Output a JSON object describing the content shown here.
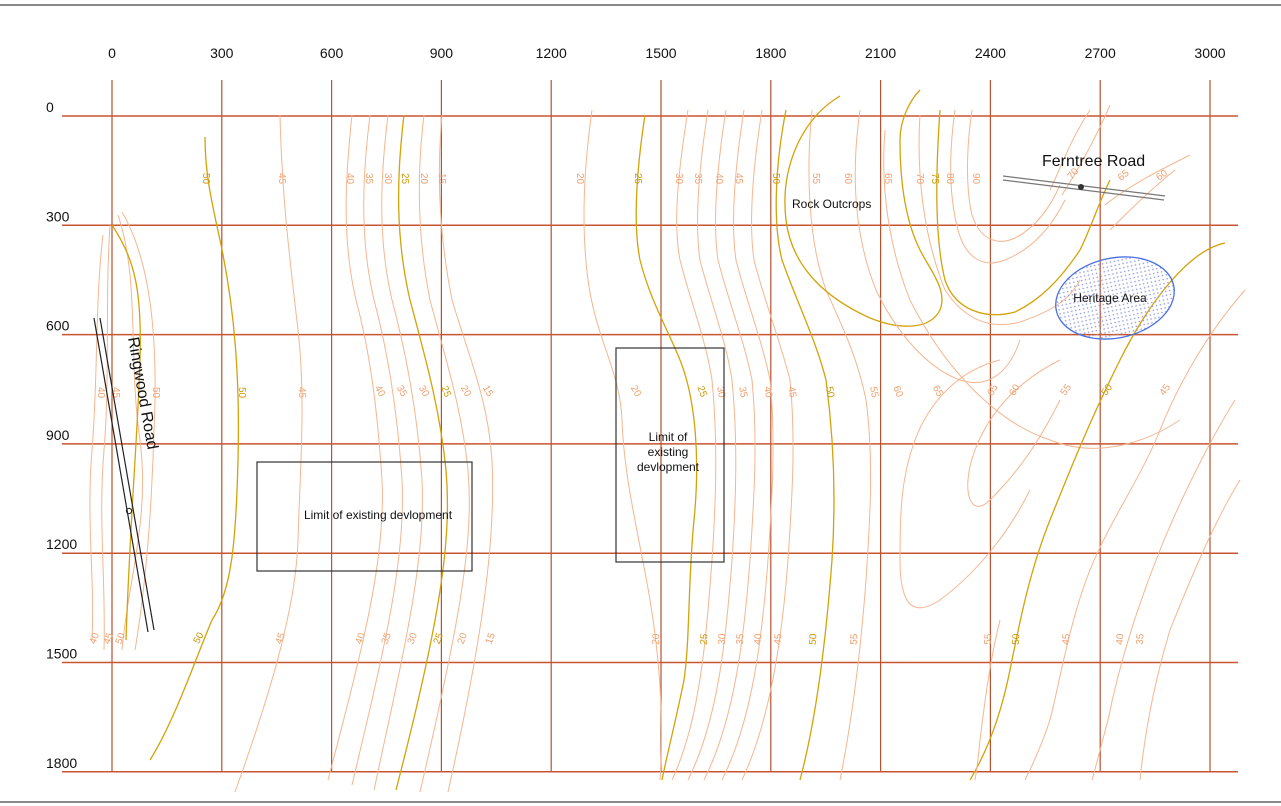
{
  "map": {
    "x_ticks": [
      "0",
      "300",
      "600",
      "900",
      "1200",
      "1500",
      "1800",
      "2100",
      "2400",
      "2700",
      "3000"
    ],
    "y_ticks": [
      "0",
      "300",
      "600",
      "900",
      "1200",
      "1500",
      "1800"
    ],
    "labels": {
      "ringwood_road": "Ringwood Road",
      "ferntree_road": "Ferntree Road",
      "rock_outcrops": "Rock Outcrops",
      "heritage_area": "Heritage Area",
      "limit_left": "Limit of existing devlopment",
      "limit_right_1": "Limit of",
      "limit_right_2": "existing",
      "limit_right_3": "devlopment"
    },
    "contour_labels": {
      "top": [
        "50",
        "45",
        "40",
        "35",
        "30",
        "25",
        "20",
        "15",
        "20",
        "25",
        "30",
        "35",
        "40",
        "45",
        "50",
        "55",
        "60",
        "65",
        "70",
        "75",
        "80",
        "90",
        "70",
        "65",
        "60"
      ],
      "middle": [
        "40",
        "45",
        "50",
        "50",
        "45",
        "40",
        "35",
        "30",
        "25",
        "20",
        "15",
        "20",
        "25",
        "30",
        "35",
        "40",
        "45",
        "50",
        "55",
        "60",
        "65",
        "65",
        "60",
        "55",
        "50",
        "45"
      ],
      "bottom": [
        "40",
        "45",
        "50",
        "50",
        "45",
        "40",
        "35",
        "30",
        "25",
        "20",
        "15",
        "20",
        "25",
        "30",
        "35",
        "40",
        "45",
        "50",
        "55",
        "55",
        "50",
        "45",
        "40",
        "35"
      ]
    },
    "colors": {
      "grid": "#c8552f",
      "contour_minor": "#f4b690",
      "contour_major": "#d4a20a",
      "heritage_fill": "#c9d0f0",
      "heritage_stroke": "#4a6fe0",
      "road": "#222222",
      "ferntree_road": "#888888"
    }
  }
}
